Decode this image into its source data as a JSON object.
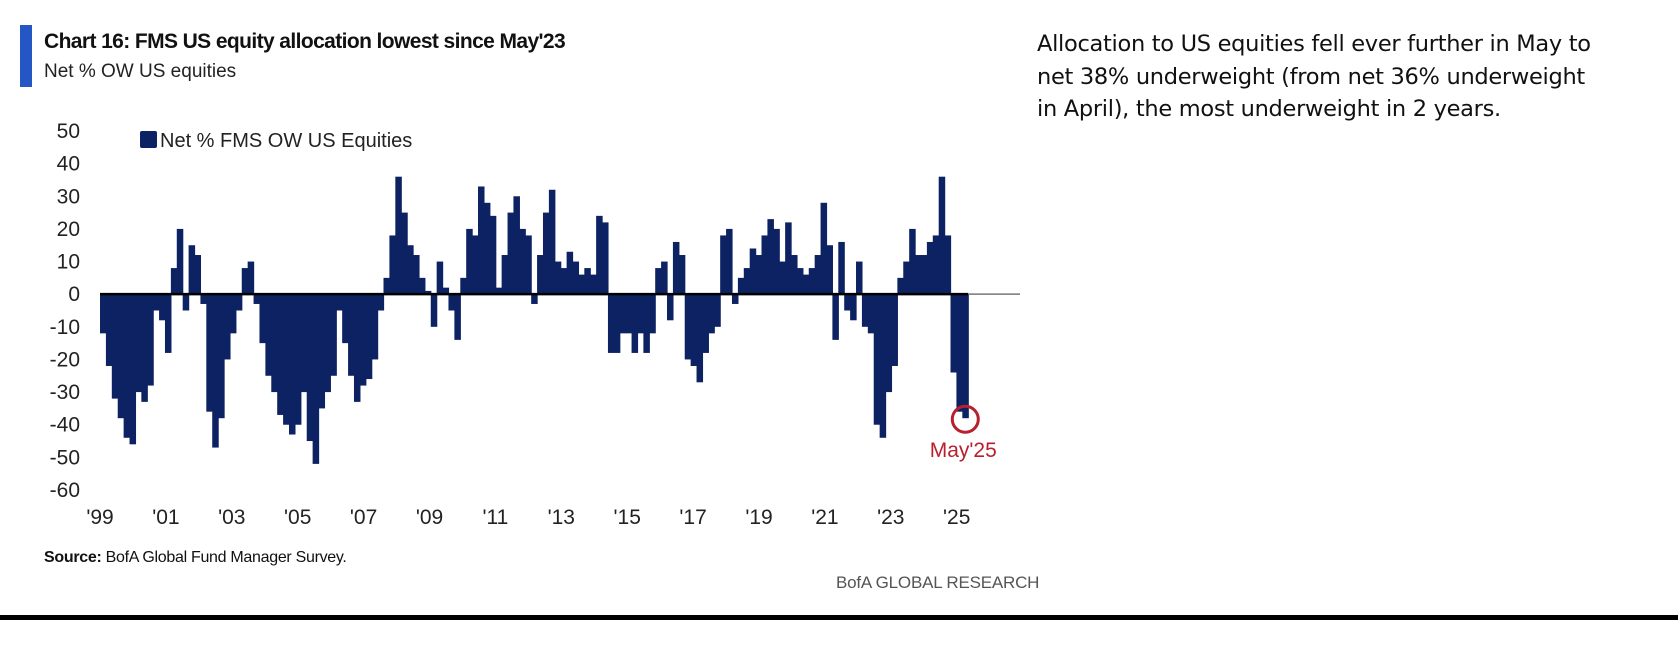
{
  "header": {
    "title": "Chart 16: FMS US equity allocation lowest since May'23",
    "subtitle": "Net % OW US equities",
    "accent_color": "#2457c5"
  },
  "commentary": "Allocation to US equities fell ever further in May to net 38% underweight (from net 36% underweight in April), the most underweight in 2 years.",
  "footer": {
    "source_label": "Source:",
    "source_text": "BofA Global Fund Manager Survey.",
    "brand": "BofA GLOBAL RESEARCH"
  },
  "chart_data": {
    "type": "bar",
    "title": "Chart 16: FMS US equity allocation lowest since May'23",
    "subtitle": "Net % OW US equities",
    "xlabel": "",
    "ylabel": "",
    "ylim": [
      -60,
      50
    ],
    "yticks": [
      50,
      40,
      30,
      20,
      10,
      0,
      -10,
      -20,
      -30,
      -40,
      -50,
      -60
    ],
    "xtick_labels": [
      "'99",
      "'01",
      "'03",
      "'05",
      "'07",
      "'09",
      "'11",
      "'13",
      "'15",
      "'17",
      "'19",
      "'21",
      "'23",
      "'25"
    ],
    "xtick_years": [
      1999,
      2001,
      2003,
      2005,
      2007,
      2009,
      2011,
      2013,
      2015,
      2017,
      2019,
      2021,
      2023,
      2025
    ],
    "x_start_year": 1999.0,
    "grid": false,
    "legend": {
      "position": "top-left",
      "entries": [
        {
          "name": "Net % FMS OW US Equities",
          "color": "#0d2262"
        }
      ]
    },
    "series": [
      {
        "name": "Net % FMS OW US Equities",
        "color": "#0d2262",
        "frequency": "quarterly-approx",
        "values": [
          -12,
          -22,
          -32,
          -38,
          -44,
          -46,
          -30,
          -33,
          -28,
          -5,
          -8,
          -18,
          8,
          20,
          -5,
          15,
          12,
          -3,
          -36,
          -47,
          -38,
          -20,
          -12,
          -5,
          8,
          10,
          -3,
          -15,
          -25,
          -30,
          -37,
          -40,
          -43,
          -40,
          -30,
          -45,
          -52,
          -35,
          -30,
          -25,
          -5,
          -15,
          -25,
          -33,
          -28,
          -26,
          -20,
          -5,
          5,
          18,
          36,
          25,
          15,
          12,
          5,
          1,
          -10,
          10,
          2,
          -5,
          -14,
          5,
          20,
          18,
          33,
          28,
          24,
          2,
          12,
          25,
          30,
          20,
          18,
          -3,
          12,
          25,
          32,
          10,
          8,
          13,
          10,
          6,
          8,
          6,
          24,
          22,
          -18,
          -18,
          -12,
          -12,
          -18,
          -12,
          -18,
          -12,
          8,
          10,
          -8,
          16,
          12,
          -20,
          -22,
          -27,
          -18,
          -12,
          -10,
          18,
          20,
          -3,
          5,
          8,
          14,
          12,
          18,
          23,
          20,
          10,
          22,
          12,
          8,
          6,
          8,
          12,
          28,
          15,
          -14,
          16,
          -5,
          -8,
          10,
          -10,
          -12,
          -40,
          -44,
          -30,
          -22,
          5,
          10,
          20,
          12,
          12,
          16,
          18,
          36,
          18,
          -24,
          -36,
          -38
        ]
      }
    ],
    "annotations": [
      {
        "label": "May'25",
        "value": -38,
        "color": "#b8202e",
        "shape": "circle"
      }
    ]
  }
}
